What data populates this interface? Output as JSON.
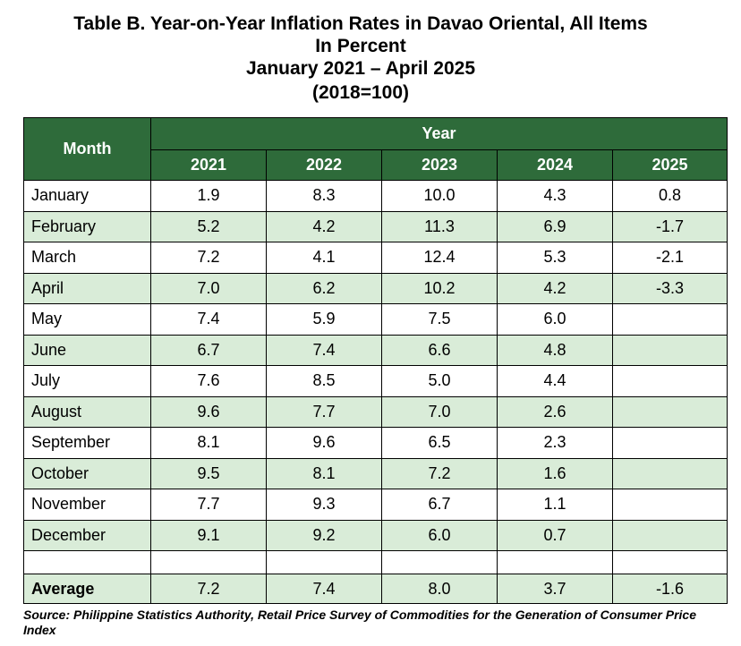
{
  "title": {
    "line1": "Table B. Year-on-Year Inflation Rates in Davao Oriental, All Items",
    "line2": "In Percent",
    "line3": "January 2021 – April 2025",
    "line4": "(2018=100)"
  },
  "table": {
    "month_header": "Month",
    "year_header": "Year",
    "years": [
      "2021",
      "2022",
      "2023",
      "2024",
      "2025"
    ],
    "rows": [
      {
        "month": "January",
        "values": [
          "1.9",
          "8.3",
          "10.0",
          "4.3",
          "0.8"
        ]
      },
      {
        "month": "February",
        "values": [
          "5.2",
          "4.2",
          "11.3",
          "6.9",
          "-1.7"
        ]
      },
      {
        "month": "March",
        "values": [
          "7.2",
          "4.1",
          "12.4",
          "5.3",
          "-2.1"
        ]
      },
      {
        "month": "April",
        "values": [
          "7.0",
          "6.2",
          "10.2",
          "4.2",
          "-3.3"
        ]
      },
      {
        "month": "May",
        "values": [
          "7.4",
          "5.9",
          "7.5",
          "6.0",
          ""
        ]
      },
      {
        "month": "June",
        "values": [
          "6.7",
          "7.4",
          "6.6",
          "4.8",
          ""
        ]
      },
      {
        "month": "July",
        "values": [
          "7.6",
          "8.5",
          "5.0",
          "4.4",
          ""
        ]
      },
      {
        "month": "August",
        "values": [
          "9.6",
          "7.7",
          "7.0",
          "2.6",
          ""
        ]
      },
      {
        "month": "September",
        "values": [
          "8.1",
          "9.6",
          "6.5",
          "2.3",
          ""
        ]
      },
      {
        "month": "October",
        "values": [
          "9.5",
          "8.1",
          "7.2",
          "1.6",
          ""
        ]
      },
      {
        "month": "November",
        "values": [
          "7.7",
          "9.3",
          "6.7",
          "1.1",
          ""
        ]
      },
      {
        "month": "December",
        "values": [
          "9.1",
          "9.2",
          "6.0",
          "0.7",
          ""
        ]
      }
    ],
    "average": {
      "label": "Average",
      "values": [
        "7.2",
        "7.4",
        "8.0",
        "3.7",
        "-1.6"
      ]
    }
  },
  "source": "Source: Philippine Statistics Authority, Retail Price Survey of Commodities for the Generation of Consumer Price Index",
  "colors": {
    "header_bg": "#2e6b3a",
    "row_shade": "#d9ecd8"
  }
}
